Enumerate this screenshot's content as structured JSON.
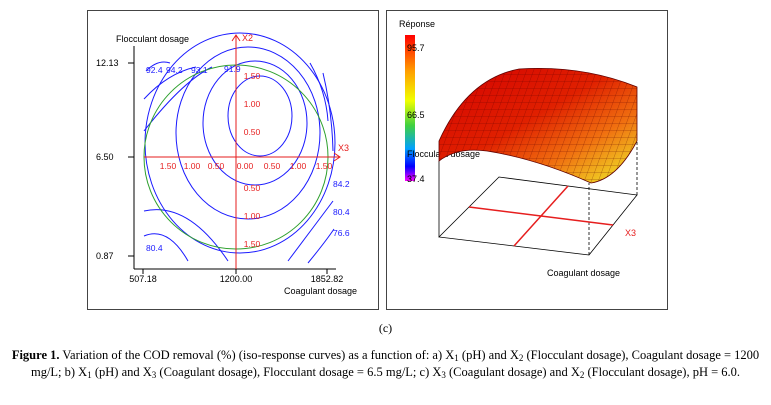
{
  "chart_data": [
    {
      "type": "contour",
      "xlabel": "Coagulant dosage",
      "ylabel": "Flocculant dosage",
      "x_ticks": [
        "507.18",
        "1200.00",
        "1852.82"
      ],
      "y_ticks": [
        "12.13",
        "6.50",
        "0.87"
      ],
      "coded_axes": {
        "x_name": "X3",
        "y_name": "X2",
        "x_labels": [
          "1.50",
          "1.00",
          "0.50",
          "0.00",
          "0.50",
          "1.00",
          "1.50"
        ],
        "y_labels": [
          "1.50",
          "1.00",
          "0.50",
          "0.50",
          "1.00",
          "1.50"
        ]
      },
      "contour_levels": [
        "92.4",
        "94.2",
        "93.1",
        "91.9",
        "84.2",
        "80.4",
        "76.6",
        "80.4"
      ],
      "colors": {
        "contour": "#1a1aff",
        "coded_axes": "#e61e1e",
        "circle": "#2ea02e"
      }
    },
    {
      "type": "surface",
      "zlabel": "Réponse",
      "xlabel": "Coagulant dosage",
      "ylabel": "Flocculant dosage",
      "coded_axis": "X3",
      "colorbar_ticks": [
        "95.7",
        "66.5",
        "37.4"
      ],
      "colors": {
        "floor_grid": "#e61e1e"
      }
    }
  ],
  "panel_label": "(c)",
  "caption": {
    "label": "Figure 1.",
    "t1": " Variation of the COD removal (%) (iso-response curves) as a function of: a) X",
    "s1": "1",
    "t2": " (pH) and X",
    "s2": "2",
    "t3": " (Flocculant dosage), Coagulant dosage = 1200 mg/L; b) X",
    "s3": "1",
    "t4": " (pH) and X",
    "s4": "3",
    "t5": " (Coagulant dosage), Flocculant dosage = 6.5 mg/L; c) X",
    "s5": "3",
    "t6": " (Coagulant dosage) and X",
    "s6": "2",
    "t7": " (Flocculant dosage), pH = 6.0."
  }
}
